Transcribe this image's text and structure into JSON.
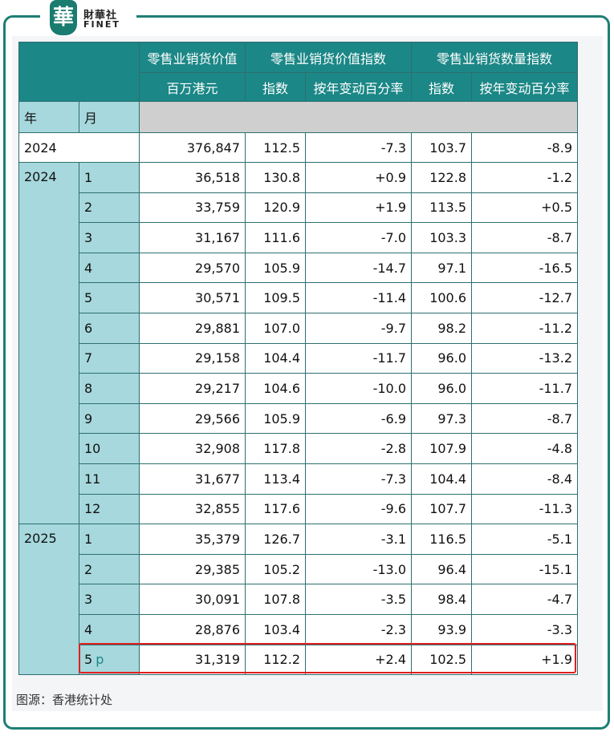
{
  "brand": {
    "seal_char": "華",
    "name_cn": "財華社",
    "name_en": "FINET"
  },
  "table": {
    "group_headers": [
      "零售业销货价值",
      "零售业销货价值指数",
      "零售业销货数量指数"
    ],
    "sub_headers": [
      "百万港元",
      "指数",
      "按年变动百分率",
      "指数",
      "按年变动百分率"
    ],
    "year_label": "年",
    "month_label": "月",
    "annual": {
      "year": "2024",
      "values": [
        "376,847",
        "112.5",
        "-7.3",
        "103.7",
        "-8.9"
      ]
    },
    "groups": [
      {
        "year": "2024",
        "rows": [
          {
            "month": "1",
            "values": [
              "36,518",
              "130.8",
              "+0.9",
              "122.8",
              "-1.2"
            ]
          },
          {
            "month": "2",
            "values": [
              "33,759",
              "120.9",
              "+1.9",
              "113.5",
              "+0.5"
            ]
          },
          {
            "month": "3",
            "values": [
              "31,167",
              "111.6",
              "-7.0",
              "103.3",
              "-8.7"
            ]
          },
          {
            "month": "4",
            "values": [
              "29,570",
              "105.9",
              "-14.7",
              "97.1",
              "-16.5"
            ]
          },
          {
            "month": "5",
            "values": [
              "30,571",
              "109.5",
              "-11.4",
              "100.6",
              "-12.7"
            ]
          },
          {
            "month": "6",
            "values": [
              "29,881",
              "107.0",
              "-9.7",
              "98.2",
              "-11.2"
            ]
          },
          {
            "month": "7",
            "values": [
              "29,158",
              "104.4",
              "-11.7",
              "96.0",
              "-13.2"
            ]
          },
          {
            "month": "8",
            "values": [
              "29,217",
              "104.6",
              "-10.0",
              "96.0",
              "-11.7"
            ]
          },
          {
            "month": "9",
            "values": [
              "29,566",
              "105.9",
              "-6.9",
              "97.3",
              "-8.7"
            ]
          },
          {
            "month": "10",
            "values": [
              "32,908",
              "117.8",
              "-2.8",
              "107.9",
              "-4.8"
            ]
          },
          {
            "month": "11",
            "values": [
              "31,677",
              "113.4",
              "-7.3",
              "104.4",
              "-8.4"
            ]
          },
          {
            "month": "12",
            "values": [
              "32,855",
              "117.6",
              "-9.6",
              "107.7",
              "-11.3"
            ]
          }
        ]
      },
      {
        "year": "2025",
        "rows": [
          {
            "month": "1",
            "values": [
              "35,379",
              "126.7",
              "-3.1",
              "116.5",
              "-5.1"
            ]
          },
          {
            "month": "2",
            "values": [
              "29,385",
              "105.2",
              "-13.0",
              "96.4",
              "-15.1"
            ]
          },
          {
            "month": "3",
            "values": [
              "30,091",
              "107.8",
              "-3.5",
              "98.4",
              "-4.7"
            ]
          },
          {
            "month": "4",
            "values": [
              "28,876",
              "103.4",
              "-2.3",
              "93.9",
              "-3.3"
            ]
          },
          {
            "month": "5",
            "mark": "p",
            "values": [
              "31,319",
              "112.2",
              "+2.4",
              "102.5",
              "+1.9"
            ]
          }
        ]
      }
    ]
  },
  "source": "图源：香港统计处",
  "colors": {
    "header": "#1b8786",
    "label_cell": "#a6d8dd",
    "highlight": "#e02020",
    "frame": "#1e7f74"
  }
}
